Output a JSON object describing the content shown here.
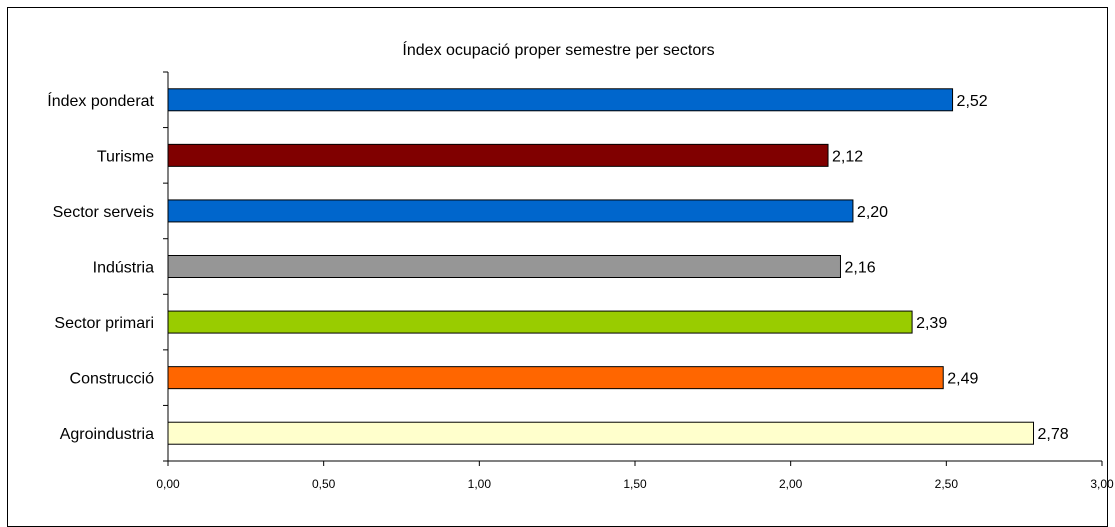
{
  "chart_data": {
    "type": "bar",
    "orientation": "horizontal",
    "title": "Índex ocupació proper semestre per sectors",
    "xlabel": "",
    "ylabel": "",
    "xlim": [
      0,
      3
    ],
    "x_ticks": [
      "0,00",
      "0,50",
      "1,00",
      "1,50",
      "2,00",
      "2,50",
      "3,00"
    ],
    "categories": [
      "Índex ponderat",
      "Turisme",
      "Sector serveis",
      "Indústria",
      "Sector primari",
      "Construcció",
      "Agroindustria"
    ],
    "values": [
      2.52,
      2.12,
      2.2,
      2.16,
      2.39,
      2.49,
      2.78
    ],
    "value_labels": [
      "2,52",
      "2,12",
      "2,20",
      "2,16",
      "2,39",
      "2,49",
      "2,78"
    ],
    "colors": [
      "#0066cc",
      "#800000",
      "#0066cc",
      "#969696",
      "#99cc00",
      "#ff6600",
      "#ffffcc"
    ],
    "grid": false,
    "legend": "none"
  }
}
